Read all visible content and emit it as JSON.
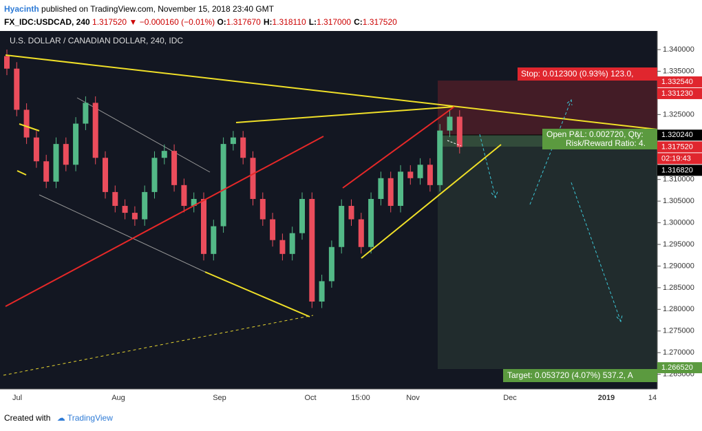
{
  "header": {
    "author": "Hyacinth",
    "published": "published on TradingView.com, November 15, 2018 23:40 GMT",
    "symbol": "FX_IDC:USDCAD, 240",
    "last": "1.317520",
    "arrow": "▼",
    "change": "−0.000160 (−0.01%)",
    "ohlc": [
      {
        "key": "O:",
        "value": "1.317670"
      },
      {
        "key": "H:",
        "value": "1.318110"
      },
      {
        "key": "L:",
        "value": "1.317000"
      },
      {
        "key": "C:",
        "value": "1.317520"
      }
    ]
  },
  "chart_data": {
    "type": "candlestick",
    "title": "U.S. DOLLAR / CANADIAN DOLLAR, 240, IDC",
    "up_color": "#53b987",
    "down_color": "#eb4d5c",
    "open": [
      1.3385,
      1.3356,
      1.3261,
      1.3197,
      1.3142,
      1.3095,
      1.3182,
      1.3134,
      1.3229,
      1.3277,
      1.315,
      1.3071,
      1.3039,
      1.3023,
      1.3008,
      1.3071,
      1.315,
      1.3166,
      1.3087,
      1.3039,
      1.3055,
      1.2928,
      1.2992,
      1.3182,
      1.3197,
      1.315,
      1.3055,
      1.3008,
      1.296,
      1.2928,
      1.2976,
      1.3055,
      1.2818,
      1.2865,
      1.2944,
      1.3039,
      1.3008,
      1.2944,
      1.3055,
      1.3103,
      1.3039,
      1.3118,
      1.3103,
      1.3134,
      1.3087,
      1.3213,
      1.3245
    ],
    "high": [
      1.34,
      1.3371,
      1.3276,
      1.3212,
      1.3157,
      1.3197,
      1.3197,
      1.3244,
      1.3292,
      1.3292,
      1.3165,
      1.3086,
      1.3054,
      1.3038,
      1.3086,
      1.3165,
      1.3181,
      1.3181,
      1.3102,
      1.307,
      1.307,
      1.3007,
      1.3197,
      1.3212,
      1.3212,
      1.3165,
      1.307,
      1.3023,
      1.2975,
      1.2991,
      1.307,
      1.307,
      1.288,
      1.2959,
      1.3054,
      1.3054,
      1.3023,
      1.307,
      1.3118,
      1.3118,
      1.3133,
      1.3133,
      1.3149,
      1.3149,
      1.3228,
      1.326,
      1.326
    ],
    "low": [
      1.3341,
      1.3246,
      1.3182,
      1.3127,
      1.308,
      1.308,
      1.3119,
      1.3119,
      1.3214,
      1.3135,
      1.3056,
      1.3024,
      1.3008,
      1.2993,
      1.2993,
      1.3056,
      1.3135,
      1.3072,
      1.3024,
      1.3024,
      1.2913,
      1.2913,
      1.2977,
      1.3167,
      1.3135,
      1.304,
      1.2993,
      1.2945,
      1.2913,
      1.2913,
      1.2961,
      1.2803,
      1.2803,
      1.285,
      1.2929,
      1.2993,
      1.2929,
      1.2929,
      1.304,
      1.3024,
      1.3024,
      1.3088,
      1.3088,
      1.3072,
      1.3072,
      1.3198,
      1.316
    ],
    "close": [
      1.3356,
      1.3261,
      1.3197,
      1.3142,
      1.3095,
      1.3182,
      1.3134,
      1.3229,
      1.3277,
      1.315,
      1.3071,
      1.3039,
      1.3023,
      1.3008,
      1.3071,
      1.315,
      1.3166,
      1.3087,
      1.3039,
      1.3055,
      1.2928,
      1.2992,
      1.3182,
      1.3197,
      1.315,
      1.3055,
      1.3008,
      1.296,
      1.2928,
      1.2976,
      1.3055,
      1.2818,
      1.2865,
      1.2944,
      1.3039,
      1.3008,
      1.2944,
      1.3055,
      1.3103,
      1.3039,
      1.3118,
      1.3103,
      1.3134,
      1.3087,
      1.3213,
      1.3245,
      1.3175
    ],
    "ylim": [
      1.2616,
      1.3443
    ],
    "yticks": [
      {
        "value": 1.34,
        "label": "1.340000"
      },
      {
        "value": 1.335,
        "label": "1.335000"
      },
      {
        "value": 1.325,
        "label": "1.325000"
      },
      {
        "value": 1.31,
        "label": "1.310000"
      },
      {
        "value": 1.305,
        "label": "1.305000"
      },
      {
        "value": 1.3,
        "label": "1.300000"
      },
      {
        "value": 1.295,
        "label": "1.295000"
      },
      {
        "value": 1.29,
        "label": "1.290000"
      },
      {
        "value": 1.285,
        "label": "1.285000"
      },
      {
        "value": 1.28,
        "label": "1.280000"
      },
      {
        "value": 1.275,
        "label": "1.275000"
      },
      {
        "value": 1.27,
        "label": "1.270000"
      },
      {
        "value": 1.265,
        "label": "1.265000"
      }
    ],
    "xlabels": [
      "Jul",
      "Aug",
      "Sep",
      "Oct",
      "15:00",
      "Nov",
      "Dec",
      "2019",
      "14"
    ],
    "price_labels": [
      {
        "value": 1.33254,
        "label": "1.332540",
        "color": "#e0262e"
      },
      {
        "value": 1.33123,
        "label": "1.331230",
        "color": "#e0262e"
      },
      {
        "value": 1.32024,
        "label": "1.320240",
        "color": "#000000"
      },
      {
        "value": 1.31752,
        "label": "1.317520",
        "color": "#e0262e"
      },
      {
        "value": 1.31682,
        "label": "1.316820",
        "color": "#000000"
      },
      {
        "value": 1.26652,
        "label": "1.266520",
        "color": "#5b9a3f"
      }
    ],
    "countdown": "02:19:43",
    "stop_label": "Stop: 0.012300 (0.93%) 123.0,",
    "pnl_label": "Open P&L: 0.002720, Qty:",
    "rr_label": "Risk/Reward Ratio: 4.",
    "target_label": "Target: 0.053720 (4.07%) 537.2, A"
  },
  "footer": {
    "created": "Created with",
    "brand": "TradingView"
  }
}
